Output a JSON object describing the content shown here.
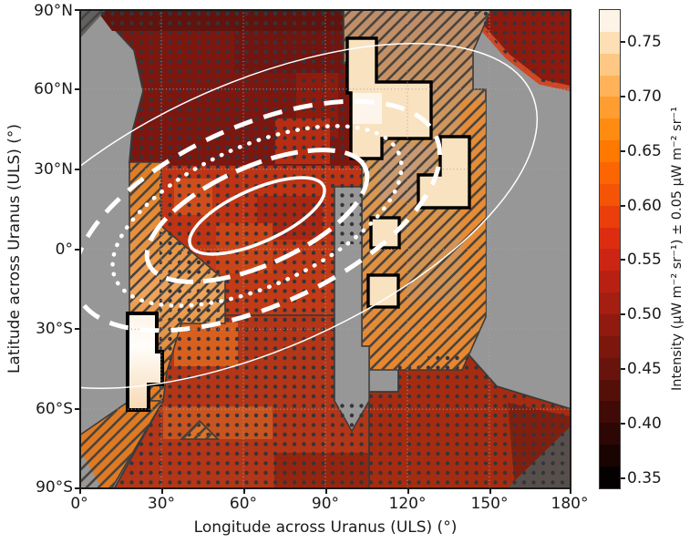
{
  "axes": {
    "x": {
      "label": "Longitude across Uranus (ULS) (°)",
      "ticks": [
        "0°",
        "30°",
        "60°",
        "90°",
        "120°",
        "150°",
        "180°"
      ],
      "range_deg": [
        0,
        180
      ]
    },
    "y": {
      "label": "Latitude across Uranus (ULS) (°)",
      "ticks": [
        "90°N",
        "60°N",
        "30°N",
        "0°",
        "30°S",
        "60°S",
        "90°S"
      ],
      "range_deg": [
        90,
        -90
      ]
    }
  },
  "colorbar": {
    "label": "Intensity (µW m⁻² sr⁻¹) ± 0.05 µW m⁻² sr⁻¹",
    "ticks": [
      "0.75",
      "0.70",
      "0.65",
      "0.60",
      "0.55",
      "0.50",
      "0.45",
      "0.40",
      "0.35"
    ],
    "range": [
      0.34,
      0.78
    ],
    "step": 0.02,
    "colors_bottom_to_top": [
      "#060101",
      "#190402",
      "#2d0704",
      "#400b06",
      "#541008",
      "#68130b",
      "#7c170d",
      "#901a0f",
      "#a41e11",
      "#b82112",
      "#cc2514",
      "#dd2d11",
      "#ea3f0b",
      "#f55306",
      "#fb6502",
      "#ff7800",
      "#ff8b10",
      "#ff9d30",
      "#ffb257",
      "#fec884",
      "#fddeb5",
      "#fdf3e7"
    ]
  },
  "chart_data": {
    "type": "heatmap",
    "title": "",
    "xlabel": "Longitude across Uranus (ULS) (°)",
    "ylabel": "Latitude across Uranus (ULS) (°)",
    "xlim_deg": [
      0,
      180
    ],
    "ylim_deg": [
      -90,
      90
    ],
    "grid": "dotted graticule every 30° in longitude and latitude",
    "colorbar_label": "Intensity (µW m⁻² sr⁻¹) ± 0.05 µW m⁻² sr⁻¹",
    "colorbar_range_uW": [
      0.34,
      0.78
    ],
    "regions": [
      {
        "name": "no-data",
        "appearance": "plain gray",
        "areas": [
          "lon 0-18, lat 60N-25S",
          "lon 93-103, lat 25N-25S narrow sliver",
          "lon 145-180, lat 60N-50S",
          "tapered wedges at all four map corners"
        ]
      },
      {
        "name": "north-polar-dark-red",
        "lon": [
          5,
          97
        ],
        "lat": [
          90,
          35
        ],
        "intensity_uW": [
          0.42,
          0.52
        ],
        "texture": "stippled (dark dots)"
      },
      {
        "name": "central-red",
        "lon": [
          28,
          103
        ],
        "lat": [
          35,
          -55
        ],
        "intensity_uW": [
          0.52,
          0.62
        ],
        "texture": "stippled (dark dots)"
      },
      {
        "name": "south-red",
        "lon": [
          12,
          152
        ],
        "lat": [
          -55,
          -90
        ],
        "intensity_uW": [
          0.48,
          0.58
        ],
        "texture": "stippled (dark dots)"
      },
      {
        "name": "northeast-red-band",
        "lon": [
          113,
          180
        ],
        "lat": [
          90,
          62
        ],
        "intensity_uW": [
          0.46,
          0.56
        ],
        "texture": "stippled (dark dots)"
      },
      {
        "name": "west-orange-band",
        "lon": [
          18,
          33
        ],
        "lat": [
          33,
          -88
        ],
        "intensity_uW": [
          0.6,
          0.7
        ],
        "texture": "diagonal hatching, widens to lon 53 near the equator"
      },
      {
        "name": "east-tan-orange-band",
        "lon": [
          97,
          150
        ],
        "lat": [
          90,
          -45
        ],
        "intensity_uW": [
          0.58,
          0.72
        ],
        "texture": "diagonal hatching"
      },
      {
        "name": "bright-outlined-patches",
        "description": "brightest areas outlined in thick black",
        "intensity_uW": [
          0.72,
          0.78
        ],
        "areas": [
          {
            "lon": [
              98,
              129
            ],
            "lat": [
              80,
              35
            ]
          },
          {
            "lon": [
              132,
              143
            ],
            "lat": [
              43,
              17
            ]
          },
          {
            "lon": [
              107,
              117
            ],
            "lat": [
              9,
              -2
            ]
          },
          {
            "lon": [
              106,
              117
            ],
            "lat": [
              -10,
              -21
            ]
          },
          {
            "lon": [
              18,
              30
            ],
            "lat": [
              -24,
              -60
            ]
          }
        ]
      },
      {
        "name": "darkened-wedge",
        "description": "dark shaded wedge over data at the lower-right corner (lon 155-180, lat 60S-90S)"
      }
    ],
    "overlays": {
      "contour_ellipses": {
        "description": "five nested white contours tilted about -24°",
        "center_lon_deg": 65,
        "center_lat_deg": 12,
        "styles_outer_to_inner": [
          "thin solid",
          "thick dashed",
          "thick dotted",
          "thick long-dashed",
          "thick solid"
        ]
      }
    }
  }
}
